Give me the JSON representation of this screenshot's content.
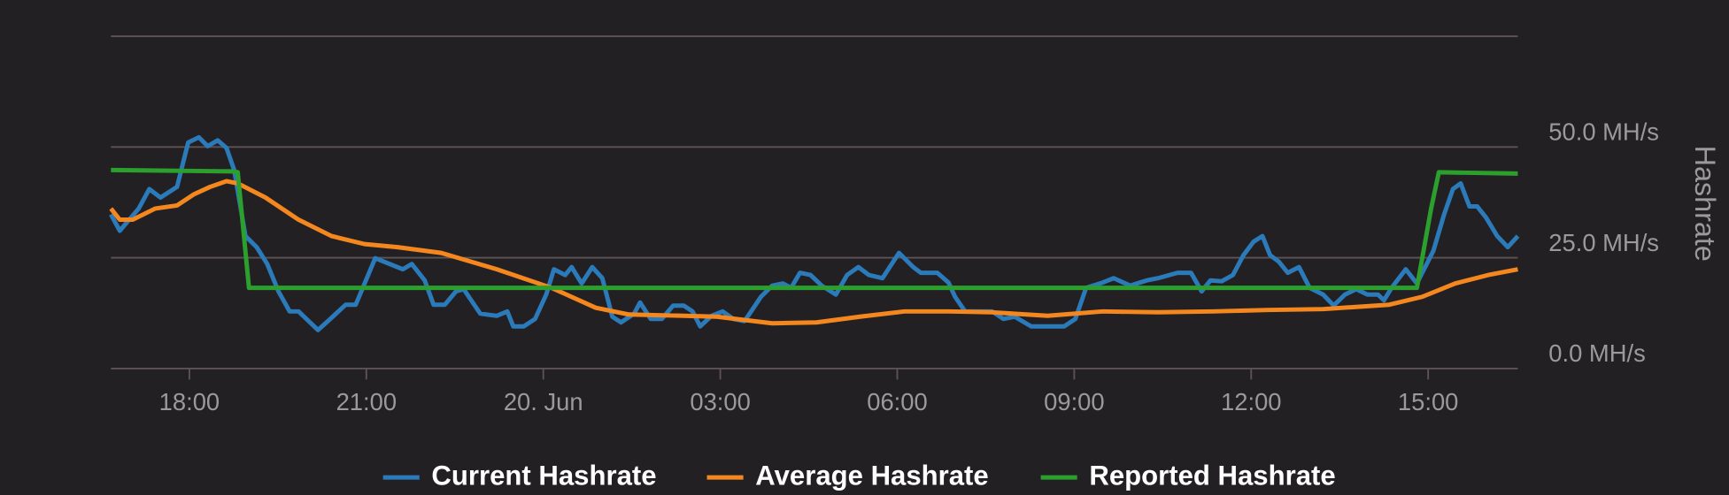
{
  "chart_data": {
    "type": "line",
    "ylabel": "Hashrate",
    "xlim": [
      16.67,
      40.52
    ],
    "xticks": [
      {
        "value": 18,
        "label": "18:00"
      },
      {
        "value": 21,
        "label": "21:00"
      },
      {
        "value": 24,
        "label": "20. Jun"
      },
      {
        "value": 27,
        "label": "03:00"
      },
      {
        "value": 30,
        "label": "06:00"
      },
      {
        "value": 33,
        "label": "09:00"
      },
      {
        "value": 36,
        "label": "12:00"
      },
      {
        "value": 39,
        "label": "15:00"
      }
    ],
    "ylim": [
      0,
      75
    ],
    "yticks": [
      {
        "value": 0,
        "label": "0.0 MH/s"
      },
      {
        "value": 25,
        "label": "25.0 MH/s"
      },
      {
        "value": 50,
        "label": "50.0 MH/s"
      },
      {
        "value": 75,
        "label": null
      }
    ],
    "grid": true,
    "legend": "bottom",
    "series": [
      {
        "name": "Current Hashrate",
        "color": "#2b7bba",
        "x": [
          16.67,
          16.82,
          17.14,
          17.32,
          17.51,
          17.79,
          17.98,
          18.16,
          18.31,
          18.48,
          18.63,
          18.76,
          18.95,
          19.14,
          19.32,
          19.51,
          19.7,
          19.85,
          20.18,
          20.35,
          20.65,
          20.82,
          21.15,
          21.62,
          21.77,
          21.99,
          22.14,
          22.33,
          22.52,
          22.65,
          22.93,
          23.21,
          23.39,
          23.49,
          23.67,
          23.86,
          24.05,
          24.18,
          24.37,
          24.48,
          24.65,
          24.83,
          25.0,
          25.17,
          25.32,
          25.54,
          25.64,
          25.82,
          26.01,
          26.2,
          26.38,
          26.53,
          26.66,
          26.85,
          27.04,
          27.22,
          27.41,
          27.54,
          27.69,
          27.88,
          28.06,
          28.2,
          28.35,
          28.53,
          28.72,
          28.96,
          29.15,
          29.34,
          29.52,
          29.75,
          30.03,
          30.27,
          30.4,
          30.68,
          30.87,
          30.98,
          31.15,
          31.61,
          31.8,
          31.99,
          32.27,
          32.83,
          33.02,
          33.2,
          33.48,
          33.67,
          33.95,
          34.23,
          34.42,
          34.75,
          34.98,
          35.16,
          35.31,
          35.5,
          35.69,
          35.87,
          36.04,
          36.19,
          36.32,
          36.47,
          36.62,
          36.81,
          36.99,
          37.22,
          37.4,
          37.59,
          37.78,
          37.97,
          38.15,
          38.25,
          38.38,
          38.62,
          38.81,
          39.09,
          39.27,
          39.42,
          39.55,
          39.7,
          39.83,
          39.98,
          40.17,
          40.35,
          40.52
        ],
        "values": [
          34.8,
          31.1,
          36.1,
          40.5,
          38.6,
          41.0,
          51.0,
          52.2,
          50.2,
          51.5,
          49.8,
          44.8,
          29.9,
          27.4,
          23.6,
          17.4,
          12.9,
          12.9,
          8.7,
          10.7,
          14.4,
          14.4,
          24.9,
          22.4,
          23.6,
          19.9,
          14.4,
          14.4,
          17.4,
          17.9,
          12.4,
          11.9,
          12.9,
          9.5,
          9.5,
          11.2,
          16.7,
          22.4,
          21.1,
          22.9,
          19.2,
          22.9,
          20.4,
          11.7,
          10.4,
          12.4,
          14.9,
          11.2,
          11.2,
          14.2,
          14.2,
          12.9,
          9.5,
          11.9,
          12.9,
          11.2,
          10.7,
          13.2,
          16.2,
          18.7,
          19.2,
          18.2,
          21.6,
          21.1,
          18.7,
          16.7,
          21.1,
          22.9,
          21.1,
          20.4,
          26.1,
          22.9,
          21.6,
          21.6,
          19.4,
          16.2,
          12.9,
          12.9,
          11.2,
          11.7,
          9.5,
          9.5,
          11.2,
          18.2,
          19.4,
          20.4,
          18.7,
          19.9,
          20.4,
          21.6,
          21.6,
          17.4,
          19.9,
          19.7,
          21.1,
          25.6,
          28.6,
          29.9,
          25.6,
          24.1,
          21.6,
          22.9,
          18.2,
          16.7,
          14.2,
          16.7,
          17.9,
          16.7,
          16.7,
          15.4,
          18.2,
          22.4,
          19.2,
          26.6,
          34.8,
          40.5,
          41.8,
          36.6,
          36.6,
          34.1,
          29.9,
          27.4,
          29.9
        ]
      },
      {
        "name": "Average Hashrate",
        "color": "#f5871f",
        "x": [
          16.67,
          16.82,
          17.04,
          17.42,
          17.79,
          18.07,
          18.35,
          18.63,
          18.82,
          19.29,
          19.85,
          20.41,
          20.97,
          21.53,
          22.27,
          23.21,
          24.14,
          24.89,
          25.45,
          26.38,
          26.94,
          27.88,
          28.63,
          29.37,
          30.12,
          30.87,
          31.61,
          32.55,
          33.48,
          34.42,
          35.35,
          36.28,
          37.22,
          38.34,
          38.9,
          39.46,
          40.02,
          40.52
        ],
        "values": [
          36.1,
          33.6,
          33.6,
          36.1,
          36.8,
          39.3,
          41.0,
          42.3,
          41.8,
          38.6,
          33.6,
          29.9,
          28.1,
          27.4,
          26.1,
          22.4,
          18.2,
          13.7,
          12.2,
          11.9,
          11.7,
          10.2,
          10.4,
          11.7,
          12.9,
          12.9,
          12.7,
          11.9,
          12.9,
          12.7,
          12.9,
          13.2,
          13.4,
          14.4,
          16.2,
          19.2,
          21.1,
          22.4
        ]
      },
      {
        "name": "Reported Hashrate",
        "color": "#2ca02c",
        "x": [
          16.67,
          18.72,
          18.82,
          19.01,
          38.81,
          39.05,
          39.18,
          40.52
        ],
        "values": [
          44.8,
          44.5,
          44.3,
          18.2,
          18.2,
          36.1,
          44.3,
          44.0
        ]
      }
    ]
  }
}
